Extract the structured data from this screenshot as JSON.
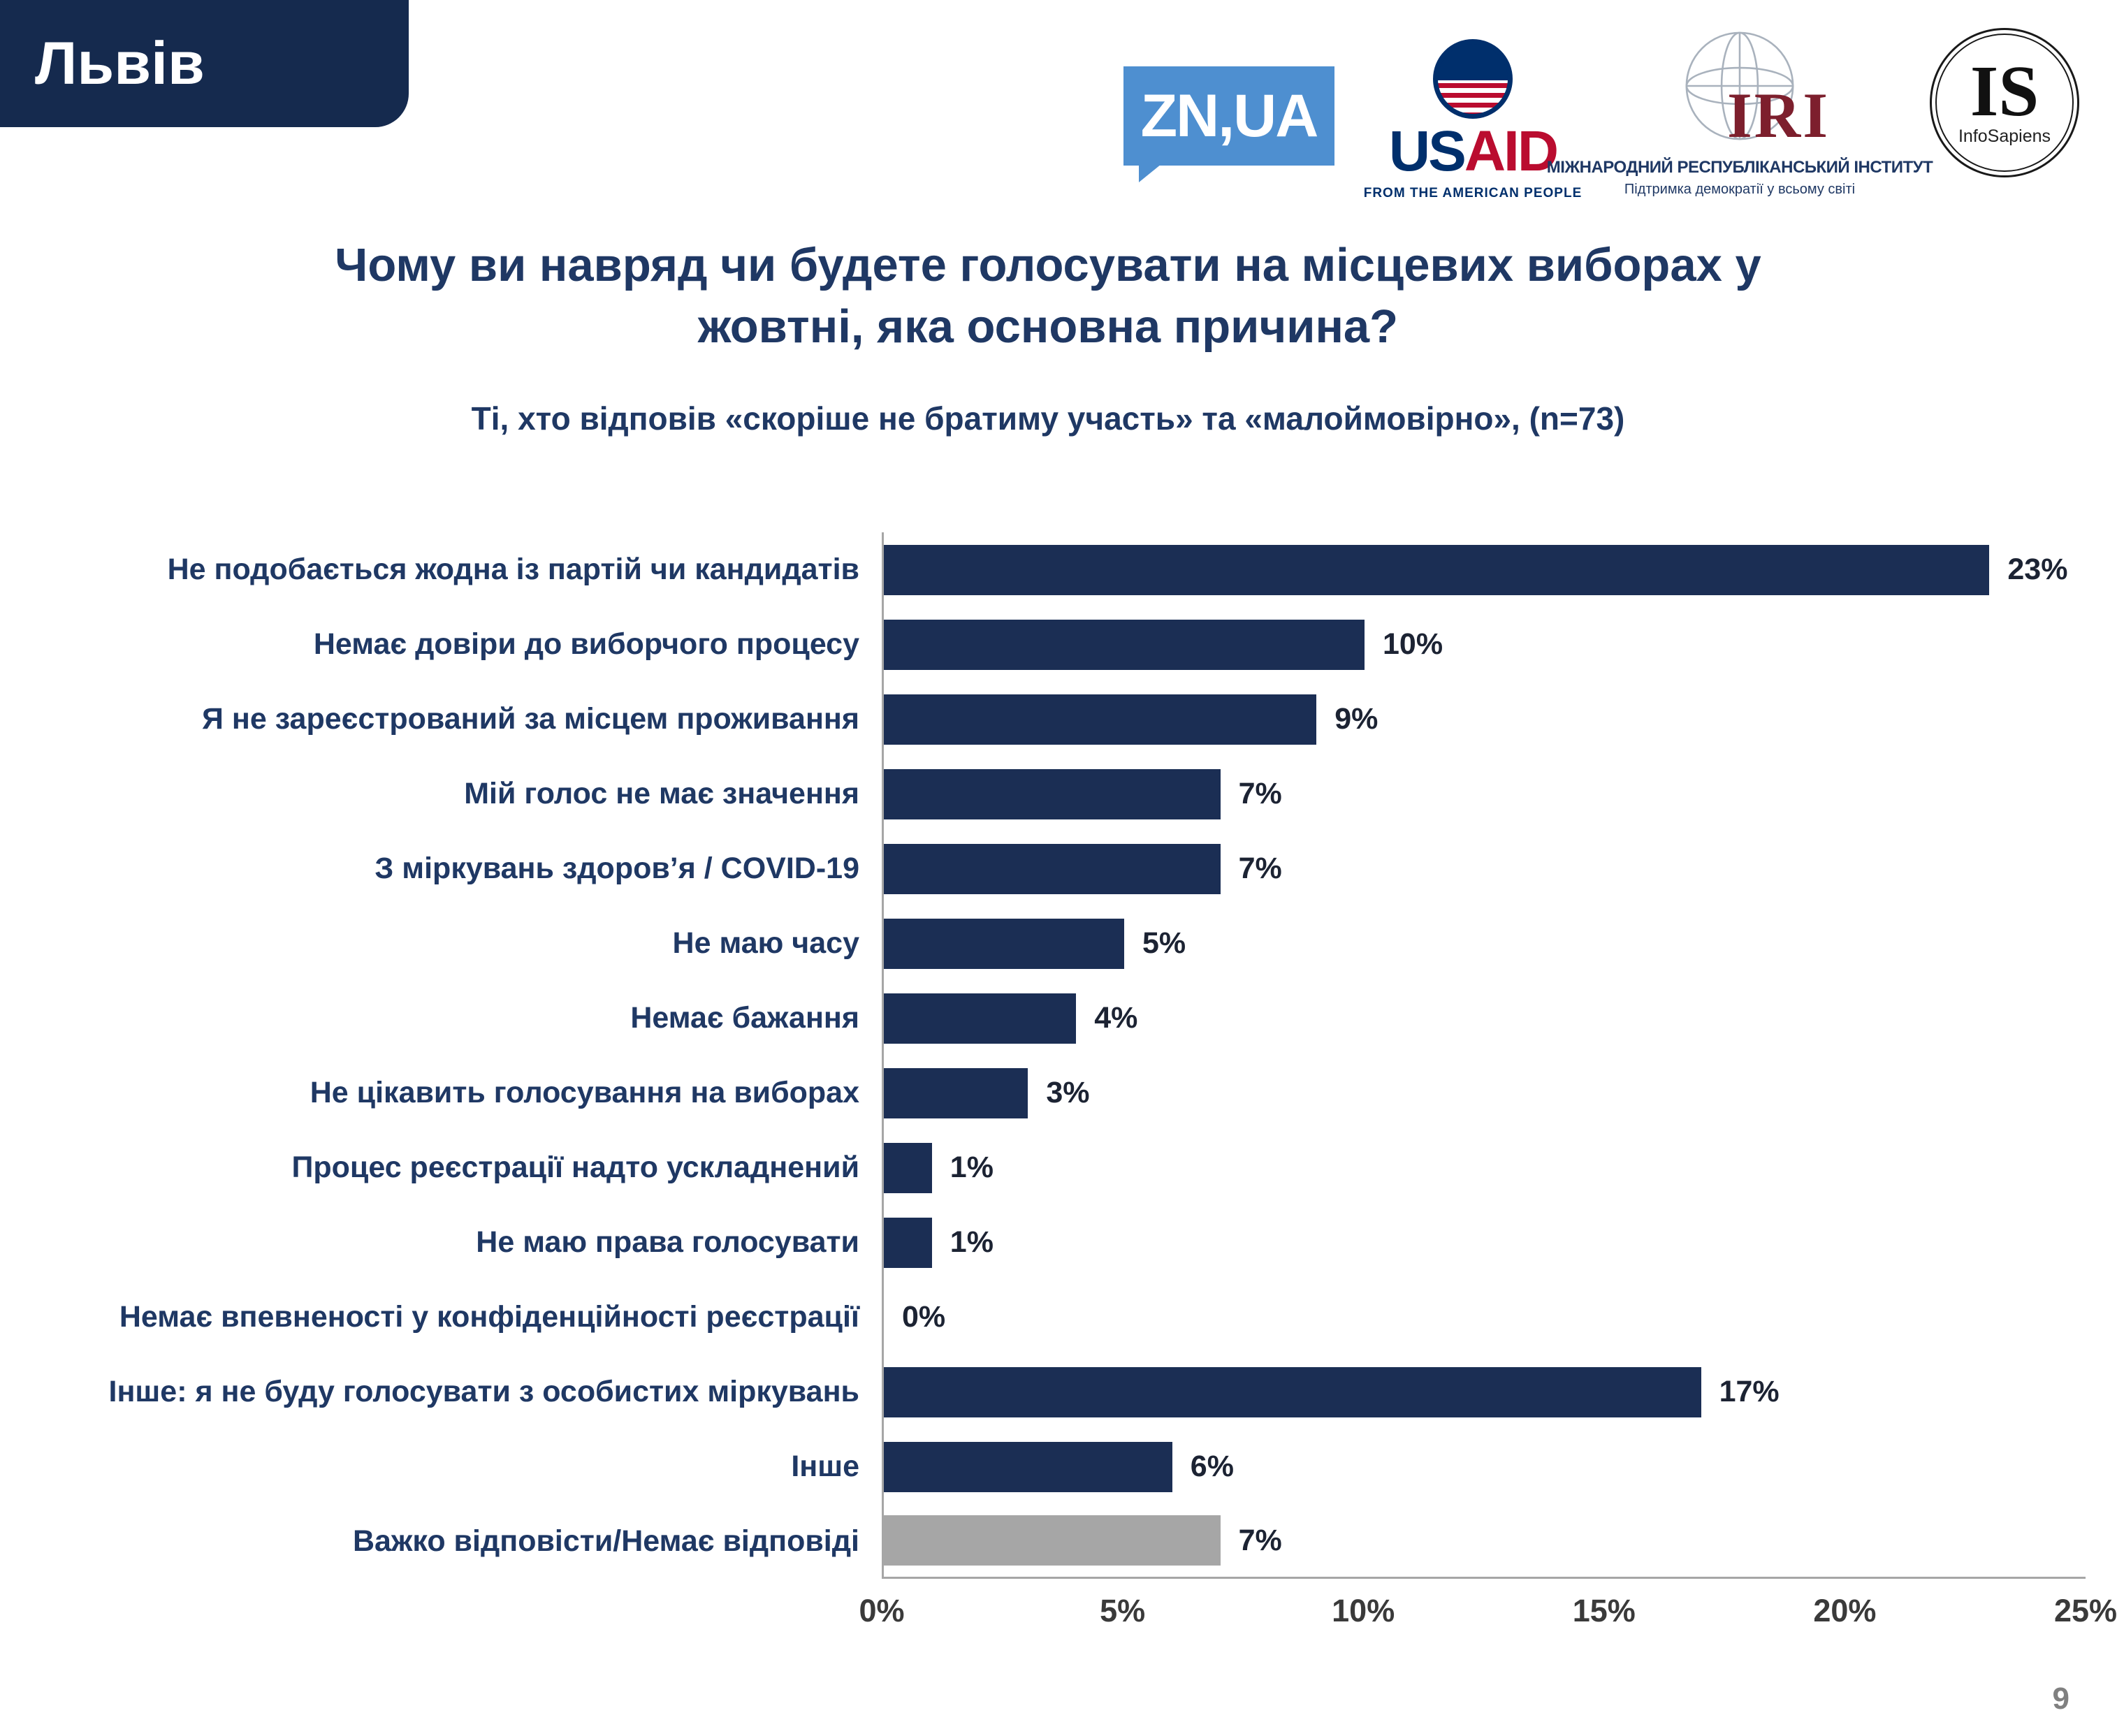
{
  "tab": {
    "label": "Львів"
  },
  "header": {
    "title_line1": "Чому ви навряд чи будете голосувати на місцевих виборах у",
    "title_line2": "жовтні, яка основна причина?",
    "subtitle": "Ті, хто відповів «скоріше не братиму участь» та «малоймовірно», (n=73)"
  },
  "logos": {
    "znua": {
      "text": "ZN,UA"
    },
    "usaid": {
      "word_us": "US",
      "word_aid": "AID",
      "tagline": "FROM THE AMERICAN PEOPLE"
    },
    "iri": {
      "abbr": "IRI",
      "line1": "МІЖНАРОДНИЙ РЕСПУБЛІКАНСЬКИЙ ІНСТИТУТ",
      "line2": "Підтримка демократії у всьому світі"
    },
    "infosapiens": {
      "abbr": "IS",
      "name": "InfoSapiens"
    }
  },
  "chart_data": {
    "type": "bar",
    "orientation": "horizontal",
    "title": "Чому ви навряд чи будете голосувати на місцевих виборах у жовтні, яка основна причина?",
    "subtitle": "Ті, хто відповів «скоріше не братиму участь» та «малоймовірно», (n=73)",
    "categories": [
      "Не подобається жодна із партій чи кандидатів",
      "Немає довіри до виборчого процесу",
      "Я не зареєстрований за місцем проживання",
      "Мій голос не має значення",
      "З міркувань здоров’я / COVID-19",
      "Не маю часу",
      "Немає бажання",
      "Не цікавить голосування на виборах",
      "Процес реєстрації надто ускладнений",
      "Не маю права голосувати",
      "Немає впевненості у конфіденційності реєстрації",
      "Інше: я не буду голосувати з особистих міркувань",
      "Інше",
      "Важко відповісти/Немає відповіді"
    ],
    "values": [
      23,
      10,
      9,
      7,
      7,
      5,
      4,
      3,
      1,
      1,
      0,
      17,
      6,
      7
    ],
    "value_labels": [
      "23%",
      "10%",
      "9%",
      "7%",
      "7%",
      "5%",
      "4%",
      "3%",
      "1%",
      "1%",
      "0%",
      "17%",
      "6%",
      "7%"
    ],
    "x_ticks": [
      "0%",
      "5%",
      "10%",
      "15%",
      "20%",
      "25%"
    ],
    "xlim": [
      0,
      25
    ],
    "grid": false,
    "bar_color": "#1b2e54",
    "last_bar_color": "#a6a6a6"
  },
  "colors": {
    "navy": "#1f3864",
    "tab_navy": "#152a4e",
    "bar_navy": "#1b2e54",
    "gray_bar": "#a6a6a6",
    "axis_gray": "#a6a6a6",
    "znua_blue": "#4e8fd0",
    "usaid_navy": "#002f6c",
    "usaid_red": "#ba0c2f",
    "iri_red": "#7d1f2d"
  },
  "footer": {
    "page_number": "9"
  }
}
